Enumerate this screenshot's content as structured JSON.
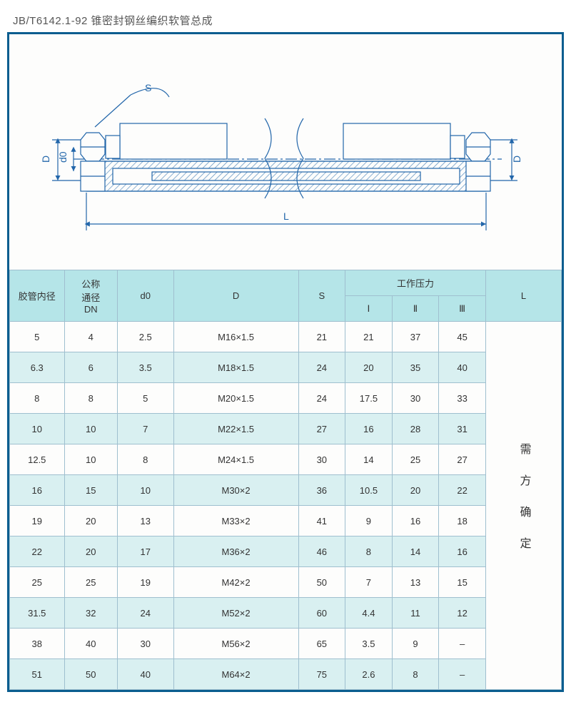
{
  "title": "JB/T6142.1-92 锥密封钢丝编织软管总成",
  "diagram": {
    "stroke": "#2266aa",
    "hatch": "#5a8fc0",
    "labels": {
      "S": "S",
      "D_left": "D",
      "d0": "d0",
      "D_right": "D",
      "L": "L"
    }
  },
  "table": {
    "header_bg": "#b5e5e8",
    "row_alt_bg": "#d9f0f1",
    "border_color": "#9fbfcf",
    "columns": {
      "c1": "胶管内径",
      "c2_top": "公称",
      "c2_mid": "通径",
      "c2_bot": "DN",
      "c3": "d0",
      "c4": "D",
      "c5": "S",
      "c6_group": "工作压力",
      "c6a": "Ⅰ",
      "c6b": "Ⅱ",
      "c6c": "Ⅲ",
      "c7": "L"
    },
    "l_text": "需方确定",
    "rows": [
      [
        "5",
        "4",
        "2.5",
        "M16×1.5",
        "21",
        "21",
        "37",
        "45"
      ],
      [
        "6.3",
        "6",
        "3.5",
        "M18×1.5",
        "24",
        "20",
        "35",
        "40"
      ],
      [
        "8",
        "8",
        "5",
        "M20×1.5",
        "24",
        "17.5",
        "30",
        "33"
      ],
      [
        "10",
        "10",
        "7",
        "M22×1.5",
        "27",
        "16",
        "28",
        "31"
      ],
      [
        "12.5",
        "10",
        "8",
        "M24×1.5",
        "30",
        "14",
        "25",
        "27"
      ],
      [
        "16",
        "15",
        "10",
        "M30×2",
        "36",
        "10.5",
        "20",
        "22"
      ],
      [
        "19",
        "20",
        "13",
        "M33×2",
        "41",
        "9",
        "16",
        "18"
      ],
      [
        "22",
        "20",
        "17",
        "M36×2",
        "46",
        "8",
        "14",
        "16"
      ],
      [
        "25",
        "25",
        "19",
        "M42×2",
        "50",
        "7",
        "13",
        "15"
      ],
      [
        "31.5",
        "32",
        "24",
        "M52×2",
        "60",
        "4.4",
        "11",
        "12"
      ],
      [
        "38",
        "40",
        "30",
        "M56×2",
        "65",
        "3.5",
        "9",
        "–"
      ],
      [
        "51",
        "50",
        "40",
        "M64×2",
        "75",
        "2.6",
        "8",
        "–"
      ]
    ]
  },
  "col_widths": [
    "70",
    "68",
    "72",
    "160",
    "60",
    "60",
    "60",
    "60",
    "60"
  ]
}
